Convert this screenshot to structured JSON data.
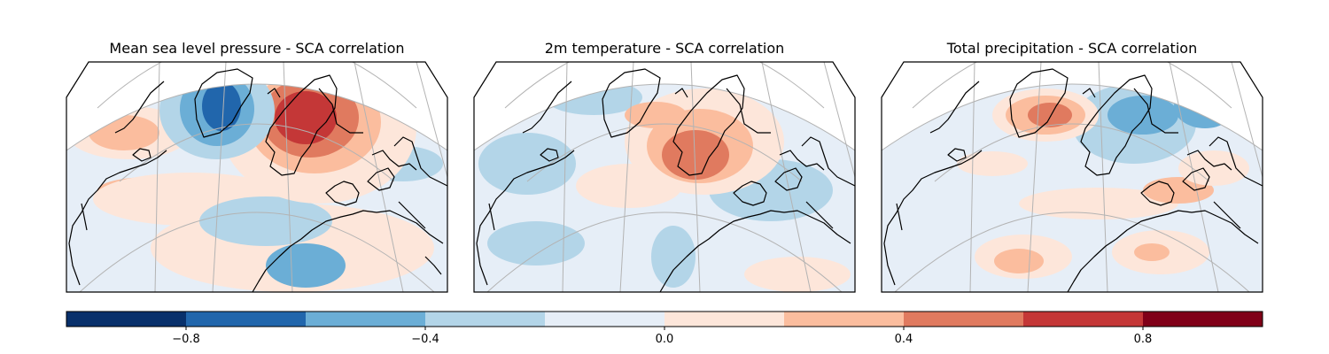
{
  "panels": [
    {
      "title": "Mean sea level pressure - SCA correlation",
      "variable": "msl"
    },
    {
      "title": "2m temperature - SCA correlation",
      "variable": "t2m"
    },
    {
      "title": "Total precipitation - SCA correlation",
      "variable": "tp"
    }
  ],
  "colorbar": {
    "min": -1.0,
    "max": 1.0,
    "step": 0.2,
    "tick_values": [
      -0.8,
      -0.4,
      0.0,
      0.4,
      0.8
    ],
    "tick_labels": [
      "−0.8",
      "−0.4",
      "0.0",
      "0.4",
      "0.8"
    ],
    "colors": [
      "#08306b",
      "#2166ac",
      "#6baed6",
      "#b3d5e8",
      "#e6eef7",
      "#fde6da",
      "#fbbd9e",
      "#e07a5f",
      "#c43737",
      "#800018"
    ]
  },
  "map": {
    "projection": "lambert-conformal",
    "land_outline_color": "#000000",
    "graticule_color": "#b3b3b3"
  }
}
